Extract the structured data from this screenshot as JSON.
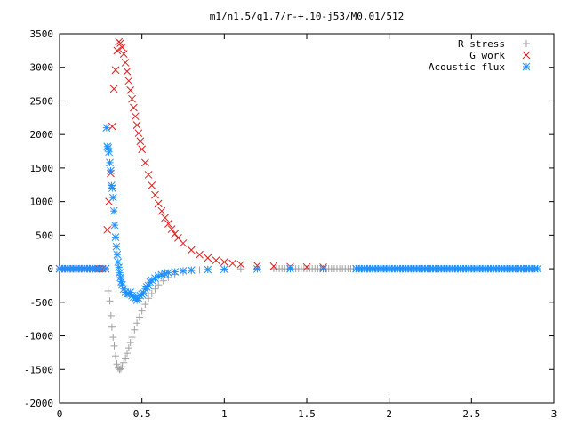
{
  "chart_data": {
    "type": "scatter",
    "title": "m1/n1.5/q1.7/r-+.10-j53/M0.01/512",
    "xlabel": "",
    "ylabel": "",
    "xlim": [
      0,
      3
    ],
    "ylim": [
      -2000,
      3500
    ],
    "xticks": [
      0,
      0.5,
      1,
      1.5,
      2,
      2.5,
      3
    ],
    "xtick_labels": [
      "0",
      "0.5",
      "1",
      "1.5",
      "2",
      "2.5",
      "3"
    ],
    "yticks": [
      -2000,
      -1500,
      -1000,
      -500,
      0,
      500,
      1000,
      1500,
      2000,
      2500,
      3000,
      3500
    ],
    "ytick_labels": [
      "-2000",
      "-1500",
      "-1000",
      "-500",
      "0",
      "500",
      "1000",
      "1500",
      "2000",
      "2500",
      "3000",
      "3500"
    ],
    "grid": false,
    "legend_position": "top-right",
    "series": [
      {
        "name": "R stress",
        "marker": "plus",
        "color": "#a0a0a0",
        "x": [
          0.0,
          0.1,
          0.2,
          0.28,
          0.295,
          0.305,
          0.312,
          0.318,
          0.325,
          0.332,
          0.34,
          0.348,
          0.356,
          0.364,
          0.372,
          0.38,
          0.39,
          0.4,
          0.41,
          0.42,
          0.43,
          0.44,
          0.455,
          0.47,
          0.485,
          0.5,
          0.52,
          0.54,
          0.56,
          0.58,
          0.6,
          0.63,
          0.66,
          0.7,
          0.75,
          0.8,
          0.85,
          0.9,
          1.0,
          1.1,
          1.2,
          1.3,
          1.4,
          1.5,
          1.6,
          1.8,
          2.0,
          2.2,
          2.4,
          2.6,
          2.8,
          2.9
        ],
        "y": [
          0,
          0,
          0,
          0,
          -330,
          -480,
          -700,
          -870,
          -1020,
          -1150,
          -1300,
          -1420,
          -1480,
          -1500,
          -1490,
          -1460,
          -1400,
          -1330,
          -1260,
          -1180,
          -1100,
          -1020,
          -910,
          -810,
          -720,
          -630,
          -530,
          -440,
          -370,
          -300,
          -240,
          -180,
          -130,
          -85,
          -50,
          -30,
          -18,
          -10,
          -4,
          -2,
          -1,
          0,
          0,
          0,
          0,
          0,
          0,
          0,
          0,
          0,
          0,
          0
        ]
      },
      {
        "name": "G work",
        "marker": "cross",
        "color": "#e31a1c",
        "x": [
          0.0,
          0.1,
          0.2,
          0.28,
          0.29,
          0.3,
          0.31,
          0.32,
          0.33,
          0.34,
          0.35,
          0.36,
          0.37,
          0.38,
          0.39,
          0.4,
          0.41,
          0.42,
          0.43,
          0.44,
          0.45,
          0.46,
          0.47,
          0.48,
          0.49,
          0.5,
          0.52,
          0.54,
          0.56,
          0.58,
          0.6,
          0.62,
          0.64,
          0.66,
          0.68,
          0.7,
          0.72,
          0.75,
          0.8,
          0.85,
          0.9,
          0.95,
          1.0,
          1.05,
          1.1,
          1.2,
          1.3,
          1.4,
          1.5,
          1.6
        ],
        "y": [
          0,
          0,
          0,
          0,
          580,
          1000,
          1420,
          2120,
          2680,
          2960,
          3250,
          3380,
          3360,
          3300,
          3200,
          3070,
          2940,
          2800,
          2660,
          2530,
          2400,
          2270,
          2140,
          2020,
          1900,
          1780,
          1580,
          1400,
          1240,
          1100,
          970,
          860,
          760,
          670,
          590,
          520,
          460,
          380,
          280,
          210,
          160,
          125,
          100,
          80,
          65,
          48,
          38,
          30,
          25,
          22
        ]
      },
      {
        "name": "Acoustic flux",
        "marker": "star",
        "color": "#1e90ff",
        "x": [
          0.0,
          0.05,
          0.1,
          0.15,
          0.2,
          0.25,
          0.28,
          0.285,
          0.29,
          0.295,
          0.3,
          0.305,
          0.31,
          0.315,
          0.32,
          0.325,
          0.33,
          0.335,
          0.34,
          0.345,
          0.35,
          0.355,
          0.36,
          0.365,
          0.37,
          0.375,
          0.38,
          0.39,
          0.4,
          0.41,
          0.42,
          0.43,
          0.44,
          0.45,
          0.46,
          0.47,
          0.48,
          0.49,
          0.5,
          0.51,
          0.52,
          0.53,
          0.54,
          0.55,
          0.56,
          0.58,
          0.6,
          0.62,
          0.64,
          0.66,
          0.7,
          0.75,
          0.8,
          0.9,
          1.0,
          1.2,
          1.4,
          1.6,
          1.8,
          2.0,
          2.2,
          2.4,
          2.6,
          2.8,
          2.9
        ],
        "y": [
          0,
          0,
          0,
          0,
          0,
          0,
          0,
          2100,
          1820,
          1800,
          1740,
          1580,
          1460,
          1240,
          1200,
          1060,
          860,
          650,
          470,
          330,
          210,
          100,
          20,
          -60,
          -130,
          -190,
          -240,
          -300,
          -350,
          -380,
          -370,
          -350,
          -400,
          -420,
          -440,
          -470,
          -440,
          -400,
          -380,
          -360,
          -300,
          -270,
          -250,
          -200,
          -170,
          -140,
          -110,
          -90,
          -75,
          -60,
          -45,
          -30,
          -20,
          -12,
          -8,
          -4,
          -2,
          -1,
          0,
          0,
          0,
          0,
          0,
          0,
          0
        ]
      }
    ]
  }
}
